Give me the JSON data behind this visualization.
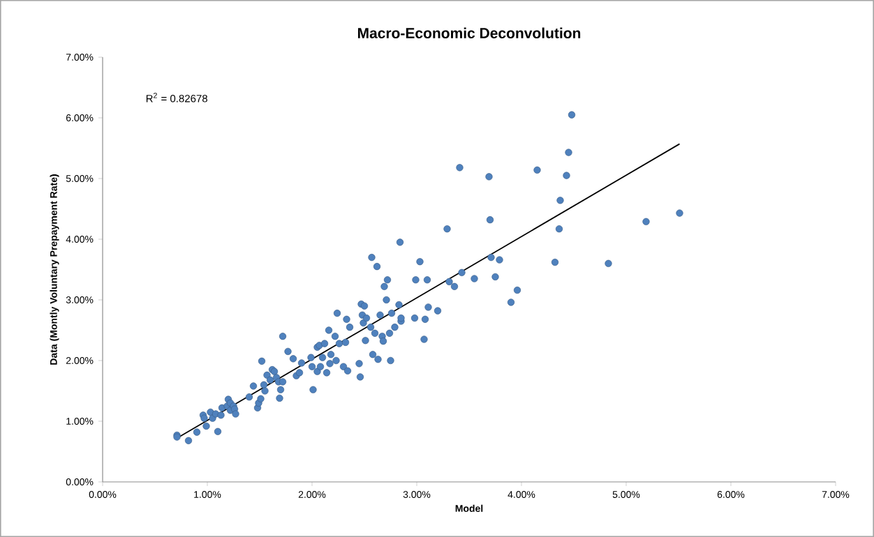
{
  "chart_data": {
    "type": "scatter",
    "title": "Macro-Economic Deconvolution",
    "xlabel": "Model",
    "ylabel": "Data (Montly Voluntary Prepayment Rate)",
    "annotations": [
      "R$^{2}$ = 0.82678"
    ],
    "xlim": [
      0,
      7
    ],
    "ylim": [
      0,
      7
    ],
    "xticks": [
      {
        "value": 0,
        "label": "0.00%"
      },
      {
        "value": 1,
        "label": "1.00%"
      },
      {
        "value": 2,
        "label": "2.00%"
      },
      {
        "value": 3,
        "label": "3.00%"
      },
      {
        "value": 4,
        "label": "4.00%"
      },
      {
        "value": 5,
        "label": "5.00%"
      },
      {
        "value": 6,
        "label": "6.00%"
      },
      {
        "value": 7,
        "label": "7.00%"
      }
    ],
    "yticks": [
      {
        "value": 0,
        "label": "0.00%"
      },
      {
        "value": 1,
        "label": "1.00%"
      },
      {
        "value": 2,
        "label": "2.00%"
      },
      {
        "value": 3,
        "label": "3.00%"
      },
      {
        "value": 4,
        "label": "4.00%"
      },
      {
        "value": 5,
        "label": "5.00%"
      },
      {
        "value": 6,
        "label": "6.00%"
      },
      {
        "value": 7,
        "label": "7.00%"
      }
    ],
    "series": [
      {
        "type": "scatter",
        "marker": "circle",
        "color": "#4f81bd",
        "x": [
          0.71,
          0.71,
          0.82,
          0.9,
          0.96,
          0.97,
          0.99,
          1.03,
          1.05,
          1.08,
          1.1,
          1.13,
          1.14,
          1.19,
          1.2,
          1.22,
          1.22,
          1.25,
          1.26,
          1.27,
          1.4,
          1.44,
          1.48,
          1.49,
          1.51,
          1.52,
          1.54,
          1.55,
          1.57,
          1.6,
          1.62,
          1.64,
          1.66,
          1.68,
          1.69,
          1.7,
          1.72,
          1.72,
          1.77,
          1.82,
          1.85,
          1.88,
          1.9,
          1.99,
          2.0,
          2.01,
          2.05,
          2.05,
          2.07,
          2.08,
          2.1,
          2.12,
          2.14,
          2.16,
          2.17,
          2.18,
          2.22,
          2.23,
          2.24,
          2.26,
          2.3,
          2.32,
          2.33,
          2.34,
          2.36,
          2.45,
          2.46,
          2.47,
          2.48,
          2.49,
          2.5,
          2.51,
          2.52,
          2.56,
          2.57,
          2.58,
          2.6,
          2.62,
          2.63,
          2.65,
          2.67,
          2.68,
          2.69,
          2.71,
          2.72,
          2.74,
          2.75,
          2.76,
          2.79,
          2.83,
          2.84,
          2.85,
          2.85,
          2.98,
          2.99,
          3.03,
          3.07,
          3.08,
          3.1,
          3.11,
          3.2,
          3.29,
          3.31,
          3.36,
          3.41,
          3.43,
          3.55,
          3.69,
          3.7,
          3.71,
          3.75,
          3.79,
          3.9,
          3.96,
          4.15,
          4.32,
          4.36,
          4.37,
          4.43,
          4.45,
          4.48,
          4.83,
          5.19,
          5.51
        ],
        "values": [
          0.77,
          0.74,
          0.68,
          0.82,
          1.1,
          1.05,
          0.92,
          1.15,
          1.05,
          1.12,
          0.83,
          1.1,
          1.22,
          1.25,
          1.36,
          1.3,
          1.18,
          1.25,
          1.2,
          1.12,
          1.4,
          1.58,
          1.22,
          1.3,
          1.37,
          1.99,
          1.6,
          1.5,
          1.76,
          1.68,
          1.85,
          1.82,
          1.72,
          1.65,
          1.38,
          1.52,
          2.4,
          1.65,
          2.15,
          2.03,
          1.75,
          1.8,
          1.96,
          2.05,
          1.9,
          1.52,
          1.82,
          2.22,
          2.25,
          1.9,
          2.05,
          2.28,
          1.8,
          2.5,
          1.95,
          2.1,
          2.4,
          2.0,
          2.78,
          2.28,
          1.9,
          2.3,
          2.68,
          1.83,
          2.55,
          1.95,
          1.73,
          2.93,
          2.75,
          2.62,
          2.9,
          2.33,
          2.7,
          2.55,
          3.7,
          2.1,
          2.45,
          3.55,
          2.02,
          2.75,
          2.4,
          2.32,
          3.22,
          3.0,
          3.33,
          2.45,
          2.0,
          2.78,
          2.55,
          2.92,
          3.95,
          2.65,
          2.7,
          2.7,
          3.33,
          3.63,
          2.35,
          2.68,
          3.33,
          2.88,
          2.82,
          4.17,
          3.3,
          3.22,
          5.18,
          3.45,
          3.35,
          5.03,
          4.32,
          3.7,
          3.38,
          3.66,
          2.96,
          3.16,
          5.14,
          3.62,
          4.17,
          4.64,
          5.05,
          5.43,
          6.05,
          3.6,
          4.29,
          4.43
        ]
      },
      {
        "type": "line",
        "marker": "none",
        "color": "#000000",
        "x": [
          0.71,
          5.51
        ],
        "values": [
          0.72,
          5.57
        ]
      }
    ]
  }
}
